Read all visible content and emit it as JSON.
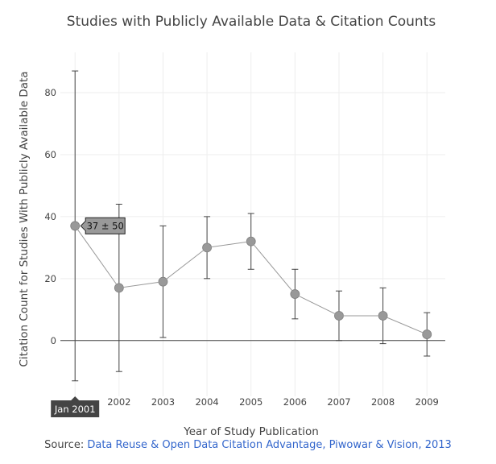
{
  "chart_data": {
    "type": "scatter",
    "title": "Studies with Publicly Available Data & Citation Counts",
    "xlabel": "Year of Study Publication",
    "ylabel": "Citation Count for Studies With Publicly Available Data",
    "x_tick_labels": [
      "2002",
      "2003",
      "2004",
      "2005",
      "2006",
      "2007",
      "2008",
      "2009"
    ],
    "y_ticks": [
      0,
      20,
      40,
      60,
      80
    ],
    "xlim": [
      "2000-09",
      "2009-06"
    ],
    "ylim": [
      -18,
      93
    ],
    "x": [
      "2001-01",
      "2002-01",
      "2003-01",
      "2004-01",
      "2005-01",
      "2006-01",
      "2007-01",
      "2008-01",
      "2009-01"
    ],
    "y": [
      37,
      17,
      19,
      30,
      32,
      15,
      8,
      8,
      2
    ],
    "error": [
      50,
      27,
      18,
      10,
      9,
      8,
      8,
      9,
      7
    ],
    "line": true,
    "grid": true,
    "hover": {
      "x_label": "Jan 2001",
      "label": "37 ± 50",
      "point_index": 0
    },
    "colors": {
      "marker": "#999999",
      "line": "#999999",
      "error_bar": "#444444",
      "grid": "#eeeeee",
      "zero_line": "#444444"
    }
  },
  "source": {
    "prefix": "Source: ",
    "link_text": "Data Reuse & Open Data Citation Advantage, Piwowar & Vision, 2013"
  }
}
